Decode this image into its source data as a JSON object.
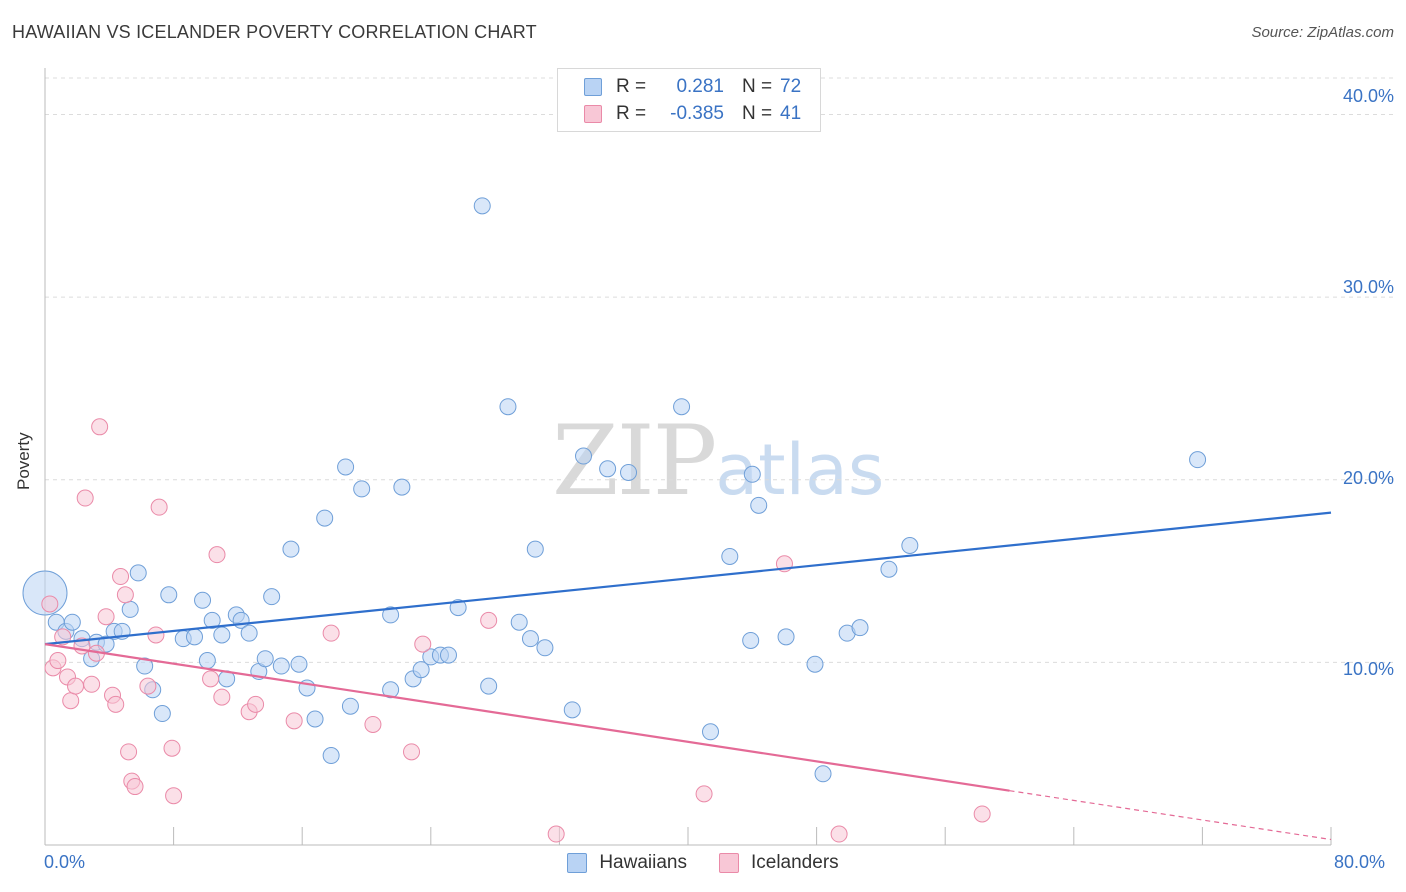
{
  "title": "HAWAIIAN VS ICELANDER POVERTY CORRELATION CHART",
  "source": "Source: ZipAtlas.com",
  "watermark": {
    "zip": "ZIP",
    "atlas": "atlas"
  },
  "legend": {
    "rows": [
      {
        "r_label": "R =",
        "r_value": "0.281",
        "n_label": "N =",
        "n_value": "72"
      },
      {
        "r_label": "R =",
        "r_value": "-0.385",
        "n_label": "N =",
        "n_value": "41"
      }
    ]
  },
  "colors": {
    "hawaiians_fill": "#b9d3f4",
    "hawaiians_stroke": "#6f9fd8",
    "hawaiians_line": "#2f6fcc",
    "icelanders_fill": "#f8c7d6",
    "icelanders_stroke": "#ea8aa8",
    "icelanders_line": "#e46a96",
    "axis_text": "#3a73c4",
    "grid": "#dcdcdc"
  },
  "chart_data": {
    "type": "scatter",
    "title": "HAWAIIAN VS ICELANDER POVERTY CORRELATION CHART",
    "xlabel": "",
    "ylabel": "Poverty",
    "xlim": [
      0,
      80
    ],
    "ylim": [
      0,
      42
    ],
    "x_tick_labels": [
      "0.0%",
      "80.0%"
    ],
    "y_ticks": [
      10,
      20,
      30,
      40
    ],
    "y_tick_labels": [
      "10.0%",
      "20.0%",
      "30.0%",
      "40.0%"
    ],
    "legend_position": "top-center",
    "series": [
      {
        "name": "Hawaiians",
        "r": 0.281,
        "n": 72,
        "trend": {
          "x0": 0,
          "y0": 11.0,
          "x1": 80,
          "y1": 18.2,
          "dashed_from": null
        },
        "points": [
          [
            0.0,
            13.8,
            1
          ],
          [
            0.7,
            12.2,
            0
          ],
          [
            1.3,
            11.7,
            0
          ],
          [
            1.7,
            12.2,
            0
          ],
          [
            2.3,
            11.3,
            0
          ],
          [
            2.9,
            10.2,
            0
          ],
          [
            3.2,
            11.1,
            0
          ],
          [
            3.8,
            11.0,
            0
          ],
          [
            4.3,
            11.7,
            0
          ],
          [
            4.8,
            11.7,
            0
          ],
          [
            5.3,
            12.9,
            0
          ],
          [
            5.8,
            14.9,
            0
          ],
          [
            6.2,
            9.8,
            0
          ],
          [
            6.7,
            8.5,
            0
          ],
          [
            7.3,
            7.2,
            0
          ],
          [
            7.7,
            13.7,
            0
          ],
          [
            8.6,
            11.3,
            0
          ],
          [
            9.3,
            11.4,
            0
          ],
          [
            9.8,
            13.4,
            0
          ],
          [
            10.1,
            10.1,
            0
          ],
          [
            10.4,
            12.3,
            0
          ],
          [
            11.0,
            11.5,
            0
          ],
          [
            11.3,
            9.1,
            0
          ],
          [
            11.9,
            12.6,
            0
          ],
          [
            12.2,
            12.3,
            0
          ],
          [
            12.7,
            11.6,
            0
          ],
          [
            13.3,
            9.5,
            0
          ],
          [
            13.7,
            10.2,
            0
          ],
          [
            14.1,
            13.6,
            0
          ],
          [
            14.7,
            9.8,
            0
          ],
          [
            15.3,
            16.2,
            0
          ],
          [
            15.8,
            9.9,
            0
          ],
          [
            16.3,
            8.6,
            0
          ],
          [
            16.8,
            6.9,
            0
          ],
          [
            17.4,
            17.9,
            0
          ],
          [
            17.8,
            4.9,
            0
          ],
          [
            18.7,
            20.7,
            0
          ],
          [
            19.0,
            7.6,
            0
          ],
          [
            19.7,
            19.5,
            0
          ],
          [
            21.5,
            8.5,
            0
          ],
          [
            21.5,
            12.6,
            0
          ],
          [
            22.2,
            19.6,
            0
          ],
          [
            22.9,
            9.1,
            0
          ],
          [
            23.4,
            9.6,
            0
          ],
          [
            24.0,
            10.3,
            0
          ],
          [
            24.6,
            10.4,
            0
          ],
          [
            25.1,
            10.4,
            0
          ],
          [
            25.7,
            13.0,
            0
          ],
          [
            27.2,
            35.0,
            0
          ],
          [
            27.6,
            8.7,
            0
          ],
          [
            28.8,
            24.0,
            0
          ],
          [
            29.5,
            12.2,
            0
          ],
          [
            30.2,
            11.3,
            0
          ],
          [
            30.5,
            16.2,
            0
          ],
          [
            31.1,
            10.8,
            0
          ],
          [
            32.8,
            7.4,
            0
          ],
          [
            33.5,
            21.3,
            0
          ],
          [
            35.0,
            20.6,
            0
          ],
          [
            36.3,
            20.4,
            0
          ],
          [
            39.6,
            24.0,
            0
          ],
          [
            41.4,
            6.2,
            0
          ],
          [
            42.6,
            15.8,
            0
          ],
          [
            43.9,
            11.2,
            0
          ],
          [
            44.4,
            18.6,
            0
          ],
          [
            44.0,
            20.3,
            0
          ],
          [
            46.1,
            11.4,
            0
          ],
          [
            47.9,
            9.9,
            0
          ],
          [
            48.4,
            3.9,
            0
          ],
          [
            49.9,
            11.6,
            0
          ],
          [
            50.7,
            11.9,
            0
          ],
          [
            52.5,
            15.1,
            0
          ],
          [
            53.8,
            16.4,
            0
          ],
          [
            71.7,
            21.1,
            0
          ]
        ]
      },
      {
        "name": "Icelanders",
        "r": -0.385,
        "n": 41,
        "trend": {
          "x0": 0,
          "y0": 11.0,
          "x1": 80,
          "y1": 0.3,
          "dashed_from": 60
        },
        "points": [
          [
            0.3,
            13.2,
            0
          ],
          [
            0.5,
            9.7,
            0
          ],
          [
            0.8,
            10.1,
            0
          ],
          [
            1.1,
            11.4,
            0
          ],
          [
            1.4,
            9.2,
            0
          ],
          [
            1.6,
            7.9,
            0
          ],
          [
            1.9,
            8.7,
            0
          ],
          [
            2.3,
            10.9,
            0
          ],
          [
            2.5,
            19.0,
            0
          ],
          [
            2.9,
            8.8,
            0
          ],
          [
            3.2,
            10.5,
            0
          ],
          [
            3.4,
            22.9,
            0
          ],
          [
            3.8,
            12.5,
            0
          ],
          [
            4.2,
            8.2,
            0
          ],
          [
            4.4,
            7.7,
            0
          ],
          [
            4.7,
            14.7,
            0
          ],
          [
            5.0,
            13.7,
            0
          ],
          [
            5.2,
            5.1,
            0
          ],
          [
            5.4,
            3.5,
            0
          ],
          [
            5.6,
            3.2,
            0
          ],
          [
            6.4,
            8.7,
            0
          ],
          [
            6.9,
            11.5,
            0
          ],
          [
            7.1,
            18.5,
            0
          ],
          [
            7.9,
            5.3,
            0
          ],
          [
            8.0,
            2.7,
            0
          ],
          [
            10.3,
            9.1,
            0
          ],
          [
            10.7,
            15.9,
            0
          ],
          [
            11.0,
            8.1,
            0
          ],
          [
            12.7,
            7.3,
            0
          ],
          [
            13.1,
            7.7,
            0
          ],
          [
            15.5,
            6.8,
            0
          ],
          [
            17.8,
            11.6,
            0
          ],
          [
            20.4,
            6.6,
            0
          ],
          [
            22.8,
            5.1,
            0
          ],
          [
            23.5,
            11.0,
            0
          ],
          [
            27.6,
            12.3,
            0
          ],
          [
            31.8,
            0.6,
            0
          ],
          [
            41.0,
            2.8,
            0
          ],
          [
            46.0,
            15.4,
            0
          ],
          [
            49.4,
            0.6,
            0
          ],
          [
            58.3,
            1.7,
            0
          ]
        ]
      }
    ]
  },
  "bottom_legend": {
    "items": [
      "Hawaiians",
      "Icelanders"
    ]
  }
}
